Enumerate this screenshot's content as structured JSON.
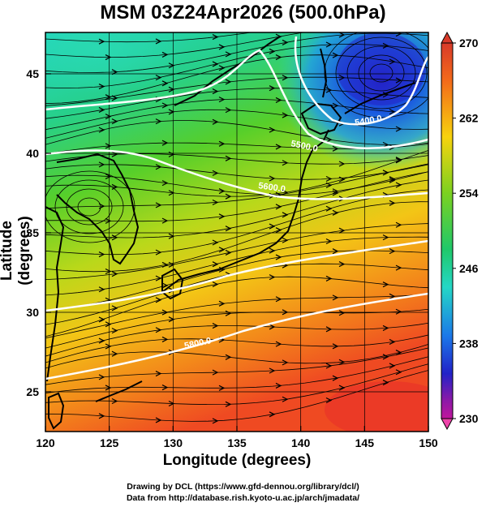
{
  "title": "MSM 03Z24Apr2026 (500.0hPa)",
  "xlabel": "Longitude (degrees)",
  "ylabel": "Latitude  (degrees)",
  "credits": {
    "line1": "Drawing by DCL (https://www.gfd-dennou.org/library/dcl/)",
    "line2": "Data from http://database.rish.kyoto-u.ac.jp/arch/jmadata/"
  },
  "map": {
    "lon_range": [
      120,
      150
    ],
    "lat_range": [
      22.5,
      47.6
    ],
    "x_ticks": [
      "120",
      "125",
      "130",
      "135",
      "140",
      "145",
      "150"
    ],
    "y_ticks": [
      "25",
      "30",
      "35",
      "40",
      "45"
    ],
    "contour_labels": [
      "5400.0",
      "5500.0",
      "5600.0",
      "5800.0"
    ]
  },
  "colorbar": {
    "range": [
      230,
      270
    ],
    "tick_labels": [
      "270",
      "262",
      "254",
      "246",
      "238",
      "230"
    ]
  }
}
